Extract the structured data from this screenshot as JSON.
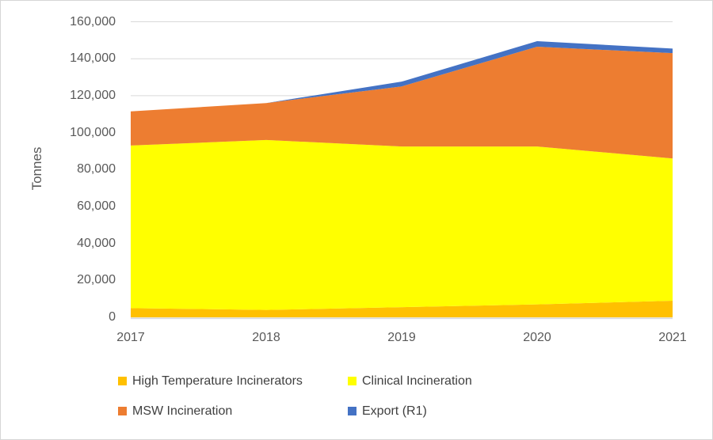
{
  "chart_data": {
    "type": "area",
    "stacked": true,
    "title": "",
    "ylabel": "Tonnes",
    "xlabel": "",
    "x_labels": [
      "2017",
      "2018",
      "2019",
      "2020",
      "2021"
    ],
    "ylim": [
      0,
      160000
    ],
    "y_tick_step": 20000,
    "y_tick_labels": [
      "0",
      "20,000",
      "40,000",
      "60,000",
      "80,000",
      "100,000",
      "120,000",
      "140,000",
      "160,000"
    ],
    "grid": true,
    "legend_position": "bottom",
    "series": [
      {
        "name": "High Temperature Incinerators",
        "color": "#FFC000",
        "values": [
          5000,
          4000,
          5500,
          7000,
          9000
        ]
      },
      {
        "name": "Clinical Incineration",
        "color": "#FFFF00",
        "values": [
          88000,
          92000,
          87000,
          85500,
          77000
        ]
      },
      {
        "name": "MSW Incineration",
        "color": "#ED7D31",
        "values": [
          18500,
          20000,
          32500,
          54000,
          57000
        ]
      },
      {
        "name": "Export (R1)",
        "color": "#4472C4",
        "values": [
          0,
          0,
          2600,
          3000,
          2500
        ]
      }
    ],
    "colors": {
      "gridline": "#D9D9D9",
      "axis_line": "#D9D9D9",
      "axis_text": "#595959",
      "legend_text": "#404040",
      "background": "#FFFFFF"
    }
  }
}
